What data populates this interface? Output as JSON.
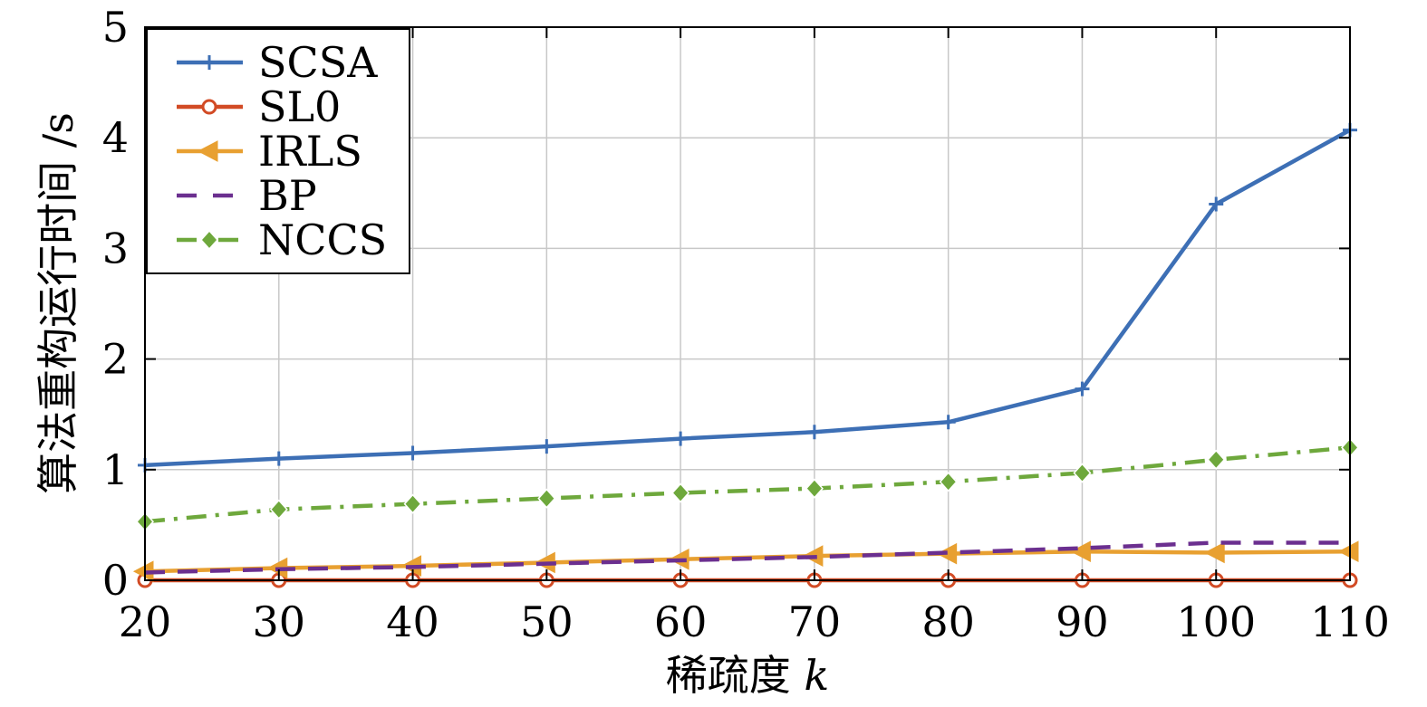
{
  "chart_data": {
    "type": "line",
    "x": [
      20,
      30,
      40,
      50,
      60,
      70,
      80,
      90,
      100,
      110
    ],
    "xlabel": "稀疏度",
    "xlabel_var": "k",
    "ylabel": "算法重构运行时间 /s",
    "xlim": [
      20,
      110
    ],
    "ylim": [
      0,
      5
    ],
    "xticks": [
      20,
      30,
      40,
      50,
      60,
      70,
      80,
      90,
      100,
      110
    ],
    "yticks": [
      0,
      1,
      2,
      3,
      4,
      5
    ],
    "grid": true,
    "legend_position": "top-left",
    "series": [
      {
        "name": "SCSA",
        "color": "#3d6fb5",
        "marker": "plus",
        "dash": "solid",
        "values": [
          1.04,
          1.1,
          1.15,
          1.21,
          1.28,
          1.34,
          1.43,
          1.73,
          3.4,
          4.07
        ]
      },
      {
        "name": "SL0",
        "color": "#d24b25",
        "marker": "circle",
        "dash": "solid",
        "values": [
          0.0,
          0.0,
          0.0,
          0.0,
          0.0,
          0.0,
          0.0,
          0.0,
          0.0,
          0.0
        ]
      },
      {
        "name": "IRLS",
        "color": "#e8a031",
        "marker": "triangle-left",
        "dash": "solid",
        "values": [
          0.08,
          0.11,
          0.13,
          0.16,
          0.19,
          0.22,
          0.24,
          0.26,
          0.25,
          0.26
        ]
      },
      {
        "name": "BP",
        "color": "#6b2f8f",
        "marker": "none",
        "dash": "dashed",
        "values": [
          0.07,
          0.1,
          0.12,
          0.15,
          0.18,
          0.21,
          0.25,
          0.29,
          0.34,
          0.34
        ]
      },
      {
        "name": "NCCS",
        "color": "#6ea83c",
        "marker": "diamond",
        "dash": "dashdot",
        "values": [
          0.53,
          0.64,
          0.69,
          0.74,
          0.79,
          0.83,
          0.89,
          0.97,
          1.09,
          1.2
        ]
      }
    ]
  }
}
